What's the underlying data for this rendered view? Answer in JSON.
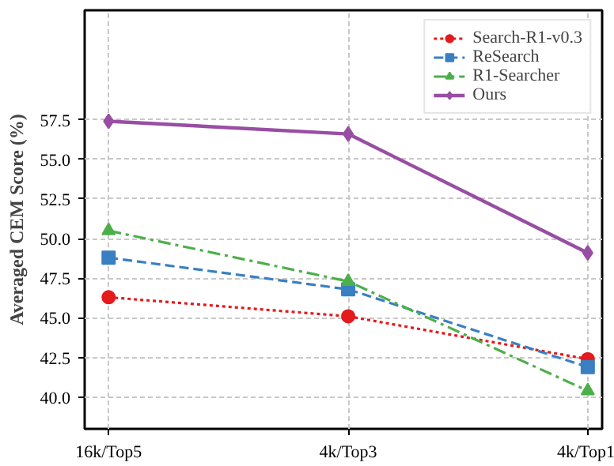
{
  "chart_data": {
    "type": "line",
    "ylabel": "Averaged CEM Score (%)",
    "categories": [
      "16k/Top5",
      "4k/Top3",
      "4k/Top1"
    ],
    "series": [
      {
        "name": "Search-R1-v0.3",
        "color": "#e41a1c",
        "values": [
          46.3,
          45.1,
          42.4
        ],
        "marker": "circle",
        "line_style": "dotted"
      },
      {
        "name": "ReSearch",
        "color": "#3a7fc1",
        "values": [
          48.8,
          46.8,
          41.9
        ],
        "marker": "square",
        "line_style": "dashed"
      },
      {
        "name": "R1-Searcher",
        "color": "#4daf4a",
        "values": [
          50.5,
          47.3,
          40.4
        ],
        "marker": "triangle",
        "line_style": "dashdot"
      },
      {
        "name": "Ours",
        "color": "#984ea3",
        "values": [
          57.4,
          56.6,
          49.1
        ],
        "marker": "diamond",
        "line_style": "solid"
      }
    ],
    "ylim": [
      38.0,
      64.4
    ],
    "yticks": [
      {
        "value": 40,
        "label": "40.0"
      },
      {
        "value": 42.5,
        "label": "42.5"
      },
      {
        "value": 45,
        "label": "45.0"
      },
      {
        "value": 47.5,
        "label": "47.5"
      },
      {
        "value": 50,
        "label": "50.0"
      },
      {
        "value": 52.5,
        "label": "52.5"
      },
      {
        "value": 55,
        "label": "55.0"
      },
      {
        "value": 57.5,
        "label": "57.5"
      }
    ],
    "grid": true,
    "legend": "top right"
  }
}
